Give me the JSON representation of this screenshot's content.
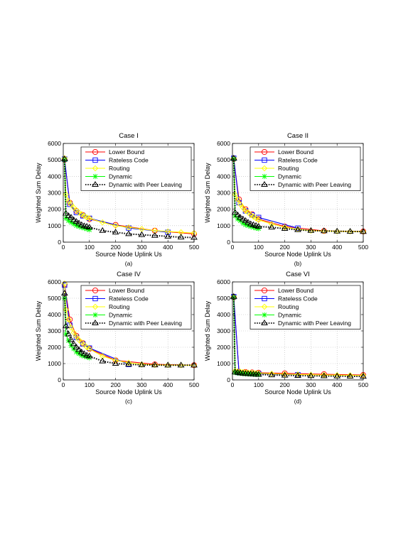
{
  "chart_data": [
    {
      "type": "line",
      "title": "Case I",
      "xlabel": "Source Node Uplink Us",
      "ylabel": "Weighted Sum Delay",
      "caption": "(a)",
      "xlim": [
        0,
        500
      ],
      "ylim": [
        0,
        6000
      ],
      "xticks": [
        0,
        100,
        200,
        300,
        400,
        500
      ],
      "yticks": [
        0,
        1000,
        2000,
        3000,
        4000,
        5000,
        6000
      ],
      "grid": true,
      "legend_position": "top-right",
      "series": [
        {
          "name": "Lower Bound",
          "x": [
            5,
            25,
            50,
            75,
            100,
            200,
            350,
            500
          ],
          "y": [
            5000,
            2400,
            1900,
            1650,
            1400,
            1050,
            700,
            500
          ]
        },
        {
          "name": "Rateless Code",
          "x": [
            5,
            25,
            50,
            75,
            100,
            250,
            400
          ],
          "y": [
            5050,
            2300,
            1800,
            1600,
            1450,
            860,
            600
          ]
        },
        {
          "name": "Routing",
          "x": [
            5,
            10,
            20,
            30,
            40,
            50,
            60,
            70,
            80,
            90,
            100,
            150,
            200,
            250,
            300,
            350,
            400,
            450,
            500
          ],
          "y": [
            5100,
            2900,
            2500,
            2300,
            2100,
            1950,
            1800,
            1700,
            1600,
            1500,
            1450,
            1200,
            1000,
            900,
            800,
            700,
            650,
            600,
            550
          ]
        },
        {
          "name": "Dynamic",
          "x": [
            5,
            10,
            20,
            30,
            40,
            50,
            60,
            70,
            80,
            90,
            100
          ],
          "y": [
            5000,
            1450,
            1300,
            1200,
            1100,
            1000,
            950,
            900,
            850,
            800,
            750
          ]
        },
        {
          "name": "Dynamic with Peer Leaving",
          "x": [
            5,
            10,
            20,
            30,
            40,
            50,
            60,
            70,
            80,
            90,
            100,
            150,
            200,
            250,
            300,
            350,
            400,
            450,
            500
          ],
          "y": [
            5050,
            1750,
            1600,
            1500,
            1350,
            1250,
            1150,
            1050,
            980,
            950,
            900,
            700,
            600,
            500,
            450,
            400,
            350,
            300,
            280
          ]
        }
      ]
    },
    {
      "type": "line",
      "title": "Case II",
      "xlabel": "Source Node Uplink Us",
      "ylabel": "Weighted Sum Delay",
      "caption": "(b)",
      "xlim": [
        0,
        500
      ],
      "ylim": [
        0,
        6000
      ],
      "xticks": [
        0,
        100,
        200,
        300,
        400,
        500
      ],
      "yticks": [
        0,
        1000,
        2000,
        3000,
        4000,
        5000,
        6000
      ],
      "grid": true,
      "legend_position": "top-right",
      "series": [
        {
          "name": "Lower Bound",
          "x": [
            5,
            25,
            50,
            75,
            100,
            200,
            350,
            500
          ],
          "y": [
            5050,
            2600,
            2000,
            1700,
            1400,
            950,
            680,
            650
          ]
        },
        {
          "name": "Rateless Code",
          "x": [
            5,
            25,
            50,
            75,
            100,
            250
          ],
          "y": [
            5100,
            2400,
            1900,
            1650,
            1500,
            850
          ]
        },
        {
          "name": "Routing",
          "x": [
            5,
            10,
            20,
            30,
            40,
            50,
            60,
            70,
            80,
            90,
            100,
            150,
            200,
            250,
            300,
            350,
            400,
            450,
            500
          ],
          "y": [
            5100,
            2900,
            2600,
            2300,
            2100,
            1900,
            1800,
            1650,
            1550,
            1450,
            1350,
            1100,
            900,
            780,
            700,
            680,
            660,
            650,
            640
          ]
        },
        {
          "name": "Dynamic",
          "x": [
            5,
            10,
            20,
            30,
            40,
            50,
            60,
            70,
            80,
            90,
            100
          ],
          "y": [
            5050,
            1600,
            1400,
            1300,
            1150,
            1050,
            1000,
            950,
            900,
            850,
            820
          ]
        },
        {
          "name": "Dynamic with Peer Leaving",
          "x": [
            5,
            10,
            20,
            30,
            40,
            50,
            60,
            70,
            80,
            90,
            100,
            150,
            200,
            250,
            300,
            350,
            400,
            450,
            500
          ],
          "y": [
            5100,
            1800,
            1650,
            1500,
            1400,
            1300,
            1200,
            1100,
            1050,
            1000,
            950,
            900,
            820,
            750,
            700,
            680,
            660,
            650,
            640
          ]
        }
      ]
    },
    {
      "type": "line",
      "title": "Case IV",
      "xlabel": "Source Node Uplink Us",
      "ylabel": "Weighted Sum Delay",
      "caption": "(c)",
      "xlim": [
        0,
        500
      ],
      "ylim": [
        0,
        6000
      ],
      "xticks": [
        0,
        100,
        200,
        300,
        400,
        500
      ],
      "yticks": [
        0,
        1000,
        2000,
        3000,
        4000,
        5000,
        6000
      ],
      "grid": true,
      "legend_position": "top-right",
      "series": [
        {
          "name": "Lower Bound",
          "x": [
            5,
            25,
            50,
            75,
            100,
            200,
            350,
            500
          ],
          "y": [
            5850,
            3700,
            2700,
            2250,
            1900,
            1200,
            950,
            900
          ]
        },
        {
          "name": "Rateless Code",
          "x": [
            5,
            25,
            50,
            75,
            100,
            250
          ],
          "y": [
            5800,
            3350,
            2600,
            2200,
            1950,
            950
          ]
        },
        {
          "name": "Routing",
          "x": [
            5,
            10,
            20,
            30,
            40,
            50,
            60,
            70,
            80,
            90,
            100,
            150,
            200,
            250,
            300,
            350,
            400,
            450,
            500
          ],
          "y": [
            5900,
            4300,
            3700,
            3200,
            2900,
            2650,
            2450,
            2300,
            2150,
            2000,
            1900,
            1450,
            1200,
            1050,
            950,
            920,
            910,
            900,
            900
          ]
        },
        {
          "name": "Dynamic",
          "x": [
            5,
            10,
            20,
            30,
            40,
            50,
            60,
            70,
            80,
            90,
            100
          ],
          "y": [
            5000,
            2800,
            2400,
            2100,
            1900,
            1700,
            1600,
            1500,
            1450,
            1400,
            1350
          ]
        },
        {
          "name": "Dynamic with Peer Leaving",
          "x": [
            5,
            10,
            20,
            30,
            40,
            50,
            60,
            70,
            80,
            90,
            100,
            150,
            200,
            250,
            300,
            350,
            400,
            450,
            500
          ],
          "y": [
            5300,
            3300,
            2800,
            2450,
            2200,
            2000,
            1850,
            1700,
            1600,
            1500,
            1450,
            1150,
            1000,
            950,
            920,
            910,
            900,
            900,
            900
          ]
        }
      ]
    },
    {
      "type": "line",
      "title": "Case VI",
      "xlabel": "Source Node Uplink Us",
      "ylabel": "Weighted Sum Delay",
      "caption": "(d)",
      "xlim": [
        0,
        500
      ],
      "ylim": [
        0,
        6000
      ],
      "xticks": [
        0,
        100,
        200,
        300,
        400,
        500
      ],
      "yticks": [
        0,
        1000,
        2000,
        3000,
        4000,
        5000,
        6000
      ],
      "grid": true,
      "legend_position": "top-right",
      "series": [
        {
          "name": "Lower Bound",
          "x": [
            5,
            25,
            50,
            75,
            100,
            200,
            350,
            500
          ],
          "y": [
            5050,
            500,
            480,
            460,
            440,
            400,
            350,
            300
          ]
        },
        {
          "name": "Rateless Code",
          "x": [
            5,
            25,
            50,
            75,
            100,
            250
          ],
          "y": [
            5100,
            450,
            420,
            400,
            380,
            320
          ]
        },
        {
          "name": "Routing",
          "x": [
            5,
            10,
            20,
            30,
            40,
            50,
            60,
            70,
            80,
            90,
            100,
            150,
            200,
            250,
            300,
            350,
            400,
            450,
            500
          ],
          "y": [
            5100,
            550,
            520,
            500,
            480,
            460,
            450,
            440,
            430,
            420,
            410,
            380,
            350,
            330,
            310,
            300,
            290,
            280,
            270
          ]
        },
        {
          "name": "Dynamic",
          "x": [
            5,
            10,
            20,
            30,
            40,
            50,
            60,
            70,
            80,
            90,
            100
          ],
          "y": [
            5050,
            450,
            420,
            400,
            380,
            370,
            360,
            350,
            340,
            330,
            320
          ]
        },
        {
          "name": "Dynamic with Peer Leaving",
          "x": [
            5,
            10,
            20,
            30,
            40,
            50,
            60,
            70,
            80,
            90,
            100,
            150,
            200,
            250,
            300,
            350,
            400,
            450,
            500
          ],
          "y": [
            5100,
            480,
            450,
            420,
            400,
            380,
            370,
            360,
            350,
            340,
            330,
            300,
            280,
            260,
            250,
            240,
            230,
            220,
            210
          ]
        }
      ]
    }
  ],
  "series_styles": [
    {
      "color": "#ff0000",
      "marker": "circle",
      "line": "solid"
    },
    {
      "color": "#0000ff",
      "marker": "square",
      "line": "solid"
    },
    {
      "color": "#ffff00",
      "marker": "diamond",
      "line": "solid"
    },
    {
      "color": "#00ff00",
      "marker": "star",
      "line": "solid"
    },
    {
      "color": "#000000",
      "marker": "triangle",
      "line": "dotted"
    }
  ]
}
